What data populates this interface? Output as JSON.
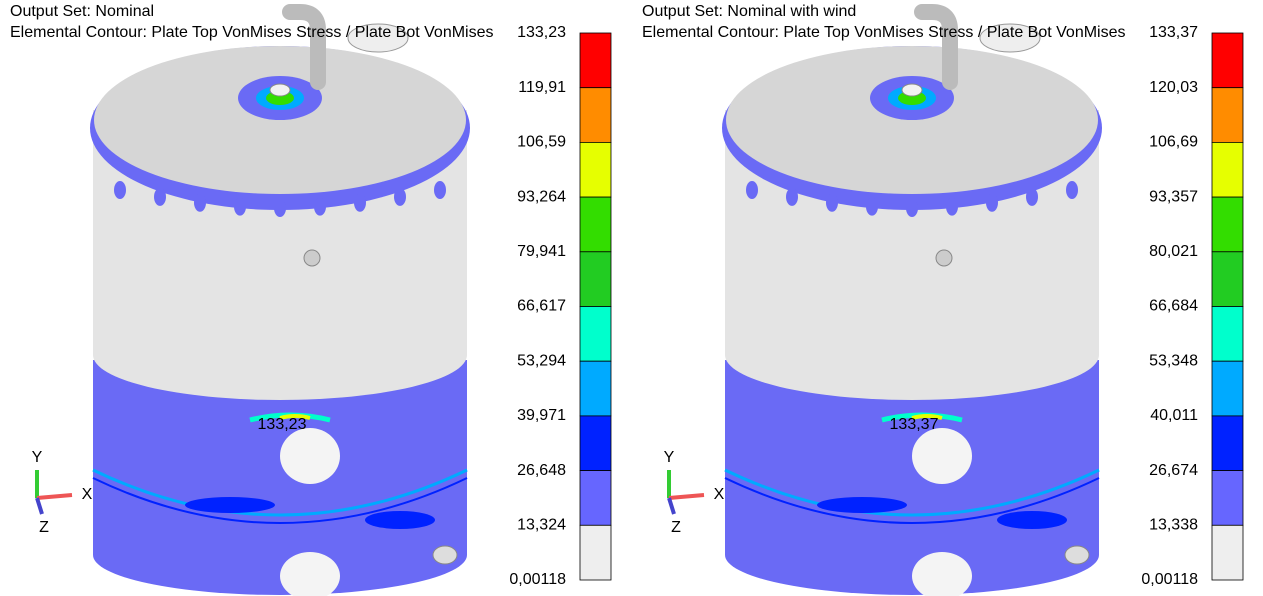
{
  "panels": [
    {
      "output_set": "Output Set: Nominal",
      "contour": "Elemental Contour: Plate Top VonMises Stress / Plate Bot VonMises",
      "peak_label": "133,23",
      "legend": [
        "133,23",
        "119,91",
        "106,59",
        "93,264",
        "79,941",
        "66,617",
        "53,294",
        "39,971",
        "26,648",
        "13,324",
        "0,00118"
      ],
      "axes": {
        "y": "Y",
        "x": "X",
        "z": "Z"
      }
    },
    {
      "output_set": "Output Set: Nominal with wind",
      "contour": "Elemental Contour: Plate Top VonMises Stress / Plate Bot VonMises",
      "peak_label": "133,37",
      "legend": [
        "133,37",
        "120,03",
        "106,69",
        "93,357",
        "80,021",
        "66,684",
        "53,348",
        "40,011",
        "26,674",
        "13,338",
        "0,00118"
      ],
      "axes": {
        "y": "Y",
        "x": "X",
        "z": "Z"
      }
    }
  ]
}
